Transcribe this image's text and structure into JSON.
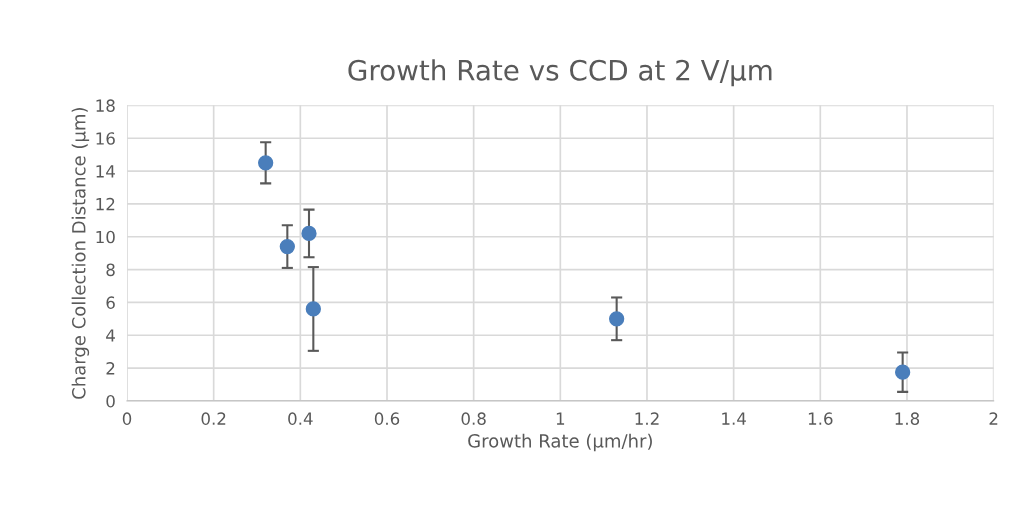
{
  "chart_data": {
    "type": "scatter",
    "title": "Growth Rate vs CCD at 2 V/µm",
    "xlabel": "Growth Rate (µm/hr)",
    "ylabel": "Charge Collection Distance (µm)",
    "x": [
      0.32,
      0.37,
      0.42,
      0.43,
      1.13,
      1.79
    ],
    "series": [
      {
        "color": "#4a7ebb",
        "values": [
          14.5,
          9.4,
          10.2,
          5.6,
          5.0,
          1.75
        ],
        "errors": [
          1.25,
          1.3,
          1.45,
          2.55,
          1.3,
          1.2
        ]
      }
    ],
    "xlim": [
      0,
      2
    ],
    "xticks": [
      0,
      0.2,
      0.4,
      0.6,
      0.8,
      1,
      1.2,
      1.4,
      1.6,
      1.8,
      2
    ],
    "ylim": [
      0,
      18
    ],
    "yticks": [
      0,
      2,
      4,
      6,
      8,
      10,
      12,
      14,
      16,
      18
    ],
    "grid": true,
    "marker": "circle"
  }
}
